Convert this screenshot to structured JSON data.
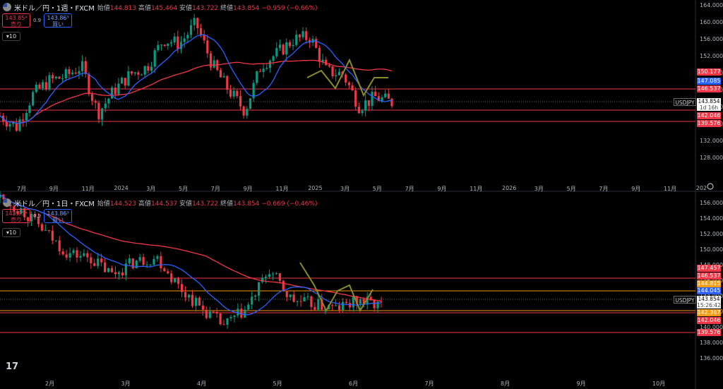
{
  "panels": [
    {
      "id": "weekly",
      "title": "米ドル／円・1週・FXCM",
      "ohlc": [
        {
          "k": "始値",
          "v": "144.813"
        },
        {
          "k": "高値",
          "v": "145.464"
        },
        {
          "k": "安値",
          "v": "143.722"
        },
        {
          "k": "終値",
          "v": "143.854"
        },
        {
          "k": "",
          "v": "−0.959 (−0.66%)"
        }
      ],
      "sell_price": "143.85⁴",
      "sell_label": "売り",
      "buy_price": "143.86³",
      "buy_label": "買い",
      "spread": "0.9",
      "lots": "10",
      "symbol_badge": "USDJPY",
      "current_price": "143.854",
      "countdown": "1d 16h",
      "y_ticks": [
        "164.000",
        "160.000",
        "156.000",
        "152.000",
        "148.000",
        "144.000",
        "140.000",
        "136.000",
        "132.000",
        "128.000"
      ],
      "x_ticks": [
        "7月",
        "9月",
        "11月",
        "2024",
        "3月",
        "5月",
        "7月",
        "9月",
        "11月",
        "2025",
        "3月",
        "5月",
        "7月",
        "9月",
        "11月",
        "2026",
        "3月",
        "5月",
        "7月",
        "9月",
        "11月",
        "202"
      ],
      "price_tags": [
        {
          "label": "150.177",
          "color": "#f23645"
        },
        {
          "label": "147.085",
          "color": "#2962ff"
        },
        {
          "label": "146.537",
          "color": "#f23645"
        },
        {
          "label": "142.046",
          "color": "#f23645"
        },
        {
          "label": "139.576",
          "color": "#f23645"
        }
      ]
    },
    {
      "id": "daily",
      "title": "米ドル／円・1日・FXCM",
      "ohlc": [
        {
          "k": "始値",
          "v": "144.523"
        },
        {
          "k": "高値",
          "v": "144.537"
        },
        {
          "k": "安値",
          "v": "143.722"
        },
        {
          "k": "終値",
          "v": "143.854"
        },
        {
          "k": "",
          "v": "−0.669 (−0.46%)"
        }
      ],
      "sell_price": "143.85⁴",
      "sell_label": "売り",
      "buy_price": "143.86³",
      "buy_label": "買い",
      "spread": "0.9",
      "lots": "10",
      "symbol_badge": "USDJPY",
      "current_price": "143.854",
      "countdown": "15:26:42",
      "y_ticks": [
        "156.000",
        "154.000",
        "152.000",
        "150.000",
        "148.000",
        "146.000",
        "144.000",
        "142.000",
        "140.000",
        "138.000",
        "136.000"
      ],
      "x_ticks": [
        "2月",
        "3月",
        "4月",
        "5月",
        "6月",
        "7月",
        "8月",
        "9月",
        "10月"
      ],
      "price_tags": [
        {
          "label": "147.457",
          "color": "#f23645"
        },
        {
          "label": "146.537",
          "color": "#f23645"
        },
        {
          "label": "144.815",
          "color": "#f59b12"
        },
        {
          "label": "144.045",
          "color": "#2962ff"
        },
        {
          "label": "142.367",
          "color": "#f59b12"
        },
        {
          "label": "142.046",
          "color": "#f23645"
        },
        {
          "label": "139.576",
          "color": "#f23645"
        }
      ]
    }
  ],
  "colors": {
    "up": "#089981",
    "down": "#f23645",
    "ma_fast": "#2962ff",
    "ma_slow": "#f23645",
    "pattern": "#8a8a2a",
    "hline_red": "#f23645",
    "hline_orange": "#f59b12"
  },
  "chart_data": [
    {
      "type": "candlestick",
      "title": "米ドル／円・1週・FXCM",
      "ylim": [
        126,
        166
      ],
      "horizontal_lines": [
        146.537,
        142.046,
        139.576
      ],
      "current": 143.854,
      "close_path": [
        [
          "2023-06",
          141.0
        ],
        [
          "2023-07",
          138.5
        ],
        [
          "2023-08",
          145.5
        ],
        [
          "2023-09",
          148.5
        ],
        [
          "2023-10",
          149.5
        ],
        [
          "2023-11",
          151.7
        ],
        [
          "2023-12",
          141.5
        ],
        [
          "2024-01",
          146.5
        ],
        [
          "2024-02",
          150.0
        ],
        [
          "2024-03",
          151.5
        ],
        [
          "2024-04",
          157.5
        ],
        [
          "2024-05",
          156.5
        ],
        [
          "2024-06",
          161.0
        ],
        [
          "2024-07",
          152.0
        ],
        [
          "2024-08",
          146.5
        ],
        [
          "2024-09",
          142.0
        ],
        [
          "2024-10",
          152.0
        ],
        [
          "2024-11",
          154.5
        ],
        [
          "2024-12",
          157.5
        ],
        [
          "2025-01",
          158.0
        ],
        [
          "2025-02",
          150.5
        ],
        [
          "2025-03",
          150.0
        ],
        [
          "2025-04",
          143.0
        ],
        [
          "2025-05",
          145.0
        ],
        [
          "2025-06",
          143.854
        ]
      ],
      "ma_fast_last": 147.085,
      "ma_slow_last": 150.177
    },
    {
      "type": "candlestick",
      "title": "米ドル／円・1日・FXCM",
      "ylim": [
        135,
        157
      ],
      "horizontal_lines": [
        147.457,
        146.537,
        144.815,
        142.367,
        142.046,
        139.576
      ],
      "current": 143.854,
      "close_path": [
        [
          "2025-01-15",
          156.5
        ],
        [
          "2025-02-01",
          155.0
        ],
        [
          "2025-02-10",
          152.5
        ],
        [
          "2025-02-20",
          150.0
        ],
        [
          "2025-03-01",
          149.5
        ],
        [
          "2025-03-10",
          147.5
        ],
        [
          "2025-03-20",
          149.0
        ],
        [
          "2025-04-01",
          149.5
        ],
        [
          "2025-04-08",
          146.0
        ],
        [
          "2025-04-15",
          143.5
        ],
        [
          "2025-04-22",
          141.5
        ],
        [
          "2025-05-01",
          143.5
        ],
        [
          "2025-05-12",
          148.0
        ],
        [
          "2025-05-20",
          144.5
        ],
        [
          "2025-05-28",
          144.0
        ],
        [
          "2025-06-05",
          143.5
        ],
        [
          "2025-06-13",
          144.5
        ],
        [
          "2025-06-16",
          143.854
        ]
      ],
      "ma_fast_last": 144.045,
      "ma_slow_last": 148.5
    }
  ]
}
